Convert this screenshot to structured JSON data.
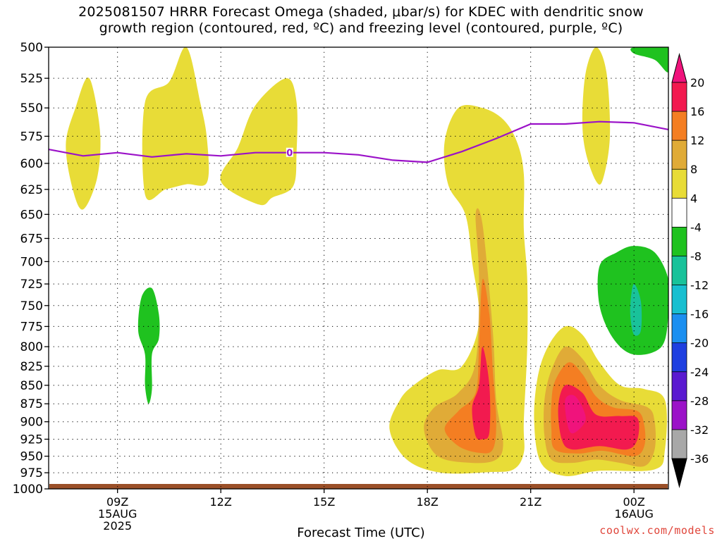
{
  "title": "2025081507 HRRR Forecast Omega (shaded, μbar/s) for KDEC with dendritic snow\ngrowth region (contoured, red, ºC) and freezing level (contoured, purple, ºC)",
  "credit": "coolwx.com/models",
  "chart_data": {
    "type": "heatmap",
    "xlabel": "Forecast Time (UTC)",
    "ylabel": "",
    "x_ticks": [
      {
        "hour": 9,
        "lines": [
          "09Z",
          "15AUG",
          "2025"
        ]
      },
      {
        "hour": 12,
        "lines": [
          "12Z"
        ]
      },
      {
        "hour": 15,
        "lines": [
          "15Z"
        ]
      },
      {
        "hour": 18,
        "lines": [
          "18Z"
        ]
      },
      {
        "hour": 21,
        "lines": [
          "21Z"
        ]
      },
      {
        "hour": 24,
        "lines": [
          "00Z",
          "16AUG"
        ]
      }
    ],
    "xlim_hours": [
      7,
      25
    ],
    "y_levels_mb": [
      500,
      525,
      550,
      575,
      600,
      625,
      650,
      675,
      700,
      725,
      750,
      775,
      800,
      825,
      850,
      875,
      900,
      925,
      950,
      975,
      1000
    ],
    "ylim_mb": [
      1000,
      500
    ],
    "grid": true,
    "colorbar": {
      "labels": [
        "20",
        "16",
        "12",
        "8",
        "4",
        "-4",
        "-8",
        "-12",
        "-16",
        "-20",
        "-24",
        "-28",
        "-32",
        "-36"
      ],
      "colors": [
        "#f21a4f",
        "#f47e22",
        "#e0ab37",
        "#e8dc37",
        "#ffffff",
        "#1fc21f",
        "#19c29a",
        "#18bfd0",
        "#1b8ff0",
        "#1e3fe0",
        "#5a1ad0",
        "#9b12c8",
        "#a8a8a8"
      ],
      "top_arrow_color": "#f0137c",
      "bottom_arrow_color": "#000000"
    },
    "freezing_level": {
      "label": "0",
      "color": "#9b12c8",
      "x_hours": [
        7,
        8,
        9,
        10,
        11,
        12,
        13,
        14,
        15,
        16,
        17,
        18,
        19,
        20,
        21,
        22,
        23,
        24,
        25
      ],
      "y_mb": [
        587,
        593,
        590,
        594,
        591,
        593,
        590,
        590,
        590,
        592,
        597,
        599,
        589,
        577,
        564,
        564,
        562,
        563,
        569
      ]
    },
    "omega_regions": [
      {
        "name": "omega-yellow-a",
        "value_range": [
          4,
          8
        ],
        "color": "#e8dc37",
        "points": [
          [
            7.5,
            582
          ],
          [
            7.8,
            548
          ],
          [
            8.1,
            525
          ],
          [
            8.3,
            535
          ],
          [
            8.5,
            575
          ],
          [
            8.4,
            615
          ],
          [
            8.0,
            645
          ],
          [
            7.7,
            625
          ]
        ]
      },
      {
        "name": "omega-yellow-b",
        "value_range": [
          4,
          8
        ],
        "color": "#e8dc37",
        "points": [
          [
            9.8,
            630
          ],
          [
            9.8,
            545
          ],
          [
            10.5,
            528
          ],
          [
            11.0,
            500
          ],
          [
            11.4,
            545
          ],
          [
            11.6,
            578
          ],
          [
            11.6,
            618
          ],
          [
            11.0,
            620
          ],
          [
            10.4,
            625
          ]
        ]
      },
      {
        "name": "omega-yellow-c",
        "value_range": [
          4,
          8
        ],
        "color": "#e8dc37",
        "points": [
          [
            12.0,
            617
          ],
          [
            12.5,
            585
          ],
          [
            13.0,
            548
          ],
          [
            13.9,
            525
          ],
          [
            14.2,
            545
          ],
          [
            14.2,
            590
          ],
          [
            14.1,
            622
          ],
          [
            13.5,
            633
          ],
          [
            13.1,
            640
          ]
        ]
      },
      {
        "name": "omega-yellow-d",
        "value_range": [
          4,
          8
        ],
        "color": "#e8dc37",
        "points": [
          [
            18.6,
            620
          ],
          [
            18.5,
            580
          ],
          [
            18.9,
            550
          ],
          [
            19.6,
            550
          ],
          [
            20.2,
            560
          ],
          [
            20.6,
            580
          ],
          [
            20.8,
            610
          ],
          [
            20.8,
            665
          ],
          [
            20.9,
            720
          ],
          [
            20.9,
            800
          ],
          [
            20.8,
            900
          ],
          [
            20.8,
            945
          ],
          [
            20.5,
            970
          ],
          [
            19.8,
            974
          ],
          [
            18.4,
            975
          ],
          [
            17.4,
            955
          ],
          [
            16.9,
            910
          ],
          [
            17.2,
            870
          ],
          [
            17.6,
            850
          ],
          [
            18.3,
            830
          ],
          [
            19.0,
            825
          ],
          [
            19.5,
            770
          ],
          [
            19.3,
            700
          ],
          [
            19.1,
            650
          ]
        ]
      },
      {
        "name": "omega-yellow-e",
        "value_range": [
          4,
          8
        ],
        "color": "#e8dc37",
        "points": [
          [
            21.2,
            840
          ],
          [
            21.5,
            800
          ],
          [
            22.0,
            775
          ],
          [
            22.5,
            785
          ],
          [
            23.0,
            820
          ],
          [
            23.6,
            850
          ],
          [
            24.3,
            855
          ],
          [
            24.9,
            870
          ],
          [
            24.9,
            940
          ],
          [
            24.6,
            970
          ],
          [
            23.0,
            972
          ],
          [
            22.0,
            980
          ],
          [
            21.3,
            960
          ],
          [
            21.1,
            900
          ]
        ]
      },
      {
        "name": "omega-yellow-f",
        "value_range": [
          4,
          8
        ],
        "color": "#e8dc37",
        "points": [
          [
            22.5,
            560
          ],
          [
            22.6,
            520
          ],
          [
            22.9,
            500
          ],
          [
            23.2,
            520
          ],
          [
            23.3,
            575
          ],
          [
            23.1,
            615
          ],
          [
            22.9,
            617
          ],
          [
            22.6,
            590
          ]
        ]
      },
      {
        "name": "omega-orange-light-a",
        "value_range": [
          8,
          12
        ],
        "color": "#e0ab37",
        "points": [
          [
            19.4,
            650
          ],
          [
            19.6,
            660
          ],
          [
            19.9,
            780
          ],
          [
            20.0,
            870
          ],
          [
            20.2,
            930
          ],
          [
            20.0,
            955
          ],
          [
            19.3,
            960
          ],
          [
            18.3,
            950
          ],
          [
            17.9,
            910
          ],
          [
            18.2,
            880
          ],
          [
            18.9,
            860
          ],
          [
            19.4,
            820
          ],
          [
            19.5,
            720
          ]
        ]
      },
      {
        "name": "omega-orange-light-b",
        "value_range": [
          8,
          12
        ],
        "color": "#e0ab37",
        "points": [
          [
            21.4,
            870
          ],
          [
            21.6,
            830
          ],
          [
            22.0,
            800
          ],
          [
            22.5,
            815
          ],
          [
            23.0,
            850
          ],
          [
            23.6,
            870
          ],
          [
            24.4,
            880
          ],
          [
            24.6,
            900
          ],
          [
            24.6,
            940
          ],
          [
            24.3,
            965
          ],
          [
            23.6,
            960
          ],
          [
            22.9,
            955
          ],
          [
            22.2,
            960
          ],
          [
            21.6,
            955
          ],
          [
            21.4,
            920
          ]
        ]
      },
      {
        "name": "omega-orange-a",
        "value_range": [
          12,
          16
        ],
        "color": "#f47e22",
        "points": [
          [
            19.6,
            720
          ],
          [
            19.8,
            760
          ],
          [
            19.9,
            830
          ],
          [
            20.0,
            900
          ],
          [
            19.9,
            940
          ],
          [
            19.5,
            945
          ],
          [
            18.9,
            935
          ],
          [
            18.5,
            910
          ],
          [
            18.9,
            885
          ],
          [
            19.4,
            860
          ],
          [
            19.5,
            800
          ]
        ]
      },
      {
        "name": "omega-orange-b",
        "value_range": [
          12,
          16
        ],
        "color": "#f47e22",
        "points": [
          [
            21.6,
            875
          ],
          [
            21.7,
            845
          ],
          [
            22.1,
            820
          ],
          [
            22.5,
            835
          ],
          [
            22.9,
            865
          ],
          [
            23.4,
            880
          ],
          [
            24.1,
            885
          ],
          [
            24.3,
            905
          ],
          [
            24.3,
            935
          ],
          [
            24.0,
            950
          ],
          [
            23.1,
            942
          ],
          [
            22.4,
            946
          ],
          [
            21.7,
            940
          ],
          [
            21.6,
            910
          ]
        ]
      },
      {
        "name": "omega-red-a",
        "value_range": [
          16,
          20
        ],
        "color": "#f21a4f",
        "points": [
          [
            19.6,
            800
          ],
          [
            19.8,
            850
          ],
          [
            19.8,
            915
          ],
          [
            19.6,
            925
          ],
          [
            19.4,
            920
          ],
          [
            19.3,
            880
          ],
          [
            19.5,
            850
          ]
        ]
      },
      {
        "name": "omega-red-b",
        "value_range": [
          16,
          20
        ],
        "color": "#f21a4f",
        "points": [
          [
            21.8,
            880
          ],
          [
            22.0,
            850
          ],
          [
            22.5,
            860
          ],
          [
            22.9,
            890
          ],
          [
            23.6,
            892
          ],
          [
            24.1,
            895
          ],
          [
            24.1,
            925
          ],
          [
            23.8,
            940
          ],
          [
            23.0,
            935
          ],
          [
            22.2,
            940
          ],
          [
            21.9,
            925
          ]
        ]
      },
      {
        "name": "omega-magenta",
        "value_range": [
          20,
          24
        ],
        "color": "#f0137c",
        "points": [
          [
            22.0,
            870
          ],
          [
            22.3,
            865
          ],
          [
            22.6,
            895
          ],
          [
            22.3,
            915
          ],
          [
            22.1,
            910
          ]
        ]
      },
      {
        "name": "omega-green-a",
        "value_range": [
          -8,
          -4
        ],
        "color": "#1fc21f",
        "points": [
          [
            9.6,
            780
          ],
          [
            9.7,
            740
          ],
          [
            10.0,
            730
          ],
          [
            10.2,
            760
          ],
          [
            10.2,
            790
          ],
          [
            10.0,
            810
          ],
          [
            10.0,
            855
          ],
          [
            9.9,
            875
          ],
          [
            9.8,
            850
          ],
          [
            9.8,
            810
          ]
        ]
      },
      {
        "name": "omega-green-b",
        "value_range": [
          -8,
          -4
        ],
        "color": "#1fc21f",
        "points": [
          [
            24.0,
            500
          ],
          [
            25.0,
            500
          ],
          [
            25.0,
            520
          ],
          [
            24.6,
            510
          ],
          [
            24.0,
            505
          ]
        ]
      },
      {
        "name": "omega-green-c",
        "value_range": [
          -8,
          -4
        ],
        "color": "#1fc21f",
        "points": [
          [
            23.0,
            705
          ],
          [
            23.5,
            690
          ],
          [
            24.0,
            683
          ],
          [
            24.6,
            690
          ],
          [
            25.0,
            720
          ],
          [
            25.0,
            760
          ],
          [
            24.8,
            800
          ],
          [
            24.0,
            810
          ],
          [
            23.4,
            790
          ],
          [
            23.0,
            750
          ]
        ]
      },
      {
        "name": "omega-teal",
        "value_range": [
          -12,
          -8
        ],
        "color": "#19c29a",
        "points": [
          [
            23.9,
            745
          ],
          [
            24.0,
            725
          ],
          [
            24.2,
            745
          ],
          [
            24.2,
            780
          ],
          [
            24.0,
            785
          ],
          [
            23.9,
            765
          ]
        ]
      }
    ]
  }
}
